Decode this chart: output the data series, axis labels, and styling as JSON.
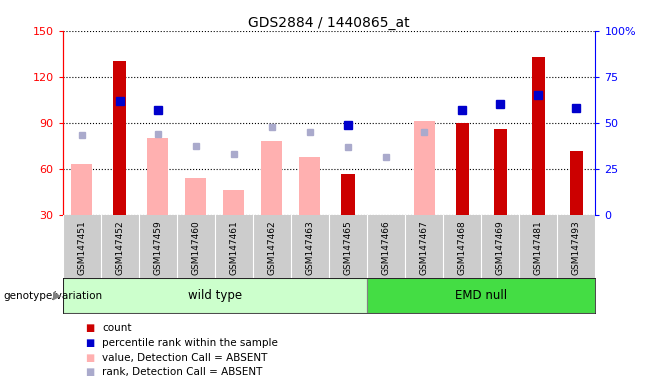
{
  "title": "GDS2884 / 1440865_at",
  "samples": [
    "GSM147451",
    "GSM147452",
    "GSM147459",
    "GSM147460",
    "GSM147461",
    "GSM147462",
    "GSM147463",
    "GSM147465",
    "GSM147466",
    "GSM147467",
    "GSM147468",
    "GSM147469",
    "GSM147481",
    "GSM147493"
  ],
  "wt_count": 8,
  "count": [
    null,
    130,
    null,
    null,
    null,
    null,
    null,
    57,
    null,
    null,
    90,
    86,
    133,
    72
  ],
  "value_absent": [
    63,
    null,
    80,
    54,
    46,
    78,
    68,
    null,
    30,
    91,
    null,
    null,
    null,
    null
  ],
  "rank_absent": [
    82,
    null,
    83,
    75,
    70,
    87,
    84,
    74,
    68,
    84,
    null,
    null,
    null,
    null
  ],
  "percentile_rank": [
    null,
    62,
    57,
    null,
    null,
    null,
    null,
    49,
    null,
    null,
    57,
    60,
    65,
    58
  ],
  "ylim_left": [
    30,
    150
  ],
  "ylim_right": [
    0,
    100
  ],
  "yticks_left": [
    30,
    60,
    90,
    120,
    150
  ],
  "yticks_right": [
    0,
    25,
    50,
    75,
    100
  ],
  "ytick_labels_right": [
    "0",
    "25",
    "50",
    "75",
    "100%"
  ],
  "bar_color_count": "#cc0000",
  "bar_color_absent": "#ffb0b0",
  "dot_color_rank": "#0000cc",
  "dot_color_rank_absent": "#aaaacc",
  "wt_color_light": "#ccffcc",
  "wt_color_dark": "#44dd44",
  "emd_color": "#44dd44",
  "bg_color": "#cccccc",
  "legend_items": [
    {
      "label": "count",
      "color": "#cc0000"
    },
    {
      "label": "percentile rank within the sample",
      "color": "#0000cc"
    },
    {
      "label": "value, Detection Call = ABSENT",
      "color": "#ffb0b0"
    },
    {
      "label": "rank, Detection Call = ABSENT",
      "color": "#aaaacc"
    }
  ]
}
